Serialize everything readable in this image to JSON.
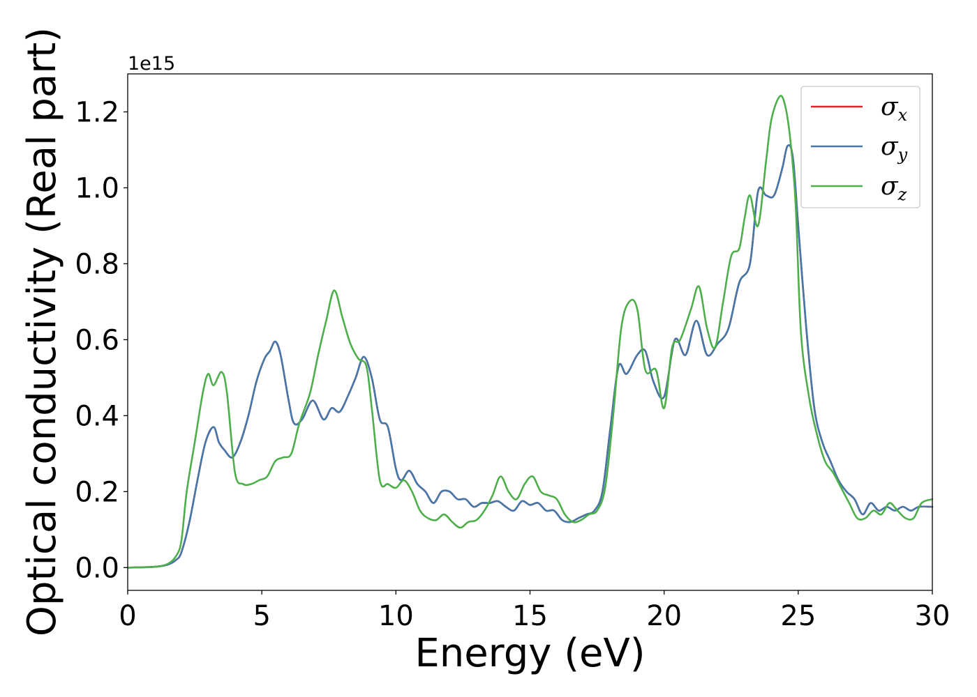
{
  "chart_data": {
    "type": "line",
    "title": "",
    "xlabel": "Energy (eV)",
    "ylabel": "Optical conductivity (Real part)",
    "y_offset_text": "1e15",
    "xlim": [
      0,
      30
    ],
    "ylim": [
      -0.06,
      1.3
    ],
    "x_ticks": [
      0,
      5,
      10,
      15,
      20,
      25,
      30
    ],
    "x_tick_labels": [
      "0",
      "5",
      "10",
      "15",
      "20",
      "25",
      "30"
    ],
    "y_ticks": [
      0.0,
      0.2,
      0.4,
      0.6,
      0.8,
      1.0,
      1.2
    ],
    "y_tick_labels": [
      "0.0",
      "0.2",
      "0.4",
      "0.6",
      "0.8",
      "1.0",
      "1.2"
    ],
    "grid": false,
    "legend_position": "top-right",
    "series": [
      {
        "name": "σx",
        "legend_symbol": "σ",
        "legend_subscript": "x",
        "color": "#d62728",
        "x": [
          0,
          1,
          1.5,
          1.8,
          2.0,
          2.3,
          2.6,
          2.9,
          3.2,
          3.4,
          3.6,
          3.9,
          4.2,
          4.5,
          4.8,
          5.1,
          5.3,
          5.5,
          5.7,
          6.0,
          6.2,
          6.5,
          6.9,
          7.3,
          7.6,
          7.9,
          8.2,
          8.5,
          8.8,
          9.1,
          9.4,
          9.7,
          10.0,
          10.2,
          10.5,
          10.8,
          11.1,
          11.4,
          11.7,
          12.0,
          12.3,
          12.6,
          12.9,
          13.2,
          13.5,
          13.8,
          14.1,
          14.4,
          14.7,
          15.0,
          15.3,
          15.6,
          15.9,
          16.2,
          16.5,
          16.8,
          17.1,
          17.4,
          17.7,
          18.0,
          18.3,
          18.6,
          19.0,
          19.3,
          19.6,
          20.0,
          20.4,
          20.8,
          21.2,
          21.6,
          22.0,
          22.4,
          22.8,
          23.2,
          23.5,
          23.8,
          24.1,
          24.4,
          24.6,
          24.8,
          25.0,
          25.3,
          25.6,
          25.9,
          26.2,
          26.5,
          26.8,
          27.1,
          27.4,
          27.7,
          28.0,
          28.3,
          28.6,
          28.9,
          29.2,
          29.5,
          30.0
        ],
        "y": [
          0.0,
          0.002,
          0.008,
          0.02,
          0.04,
          0.12,
          0.23,
          0.33,
          0.37,
          0.33,
          0.31,
          0.29,
          0.33,
          0.4,
          0.49,
          0.55,
          0.57,
          0.595,
          0.56,
          0.44,
          0.38,
          0.39,
          0.44,
          0.39,
          0.42,
          0.41,
          0.45,
          0.5,
          0.555,
          0.5,
          0.39,
          0.37,
          0.26,
          0.23,
          0.255,
          0.22,
          0.2,
          0.17,
          0.2,
          0.2,
          0.18,
          0.18,
          0.16,
          0.17,
          0.17,
          0.175,
          0.16,
          0.15,
          0.175,
          0.165,
          0.17,
          0.15,
          0.15,
          0.125,
          0.12,
          0.13,
          0.14,
          0.15,
          0.2,
          0.37,
          0.53,
          0.51,
          0.56,
          0.57,
          0.49,
          0.45,
          0.6,
          0.56,
          0.65,
          0.56,
          0.59,
          0.63,
          0.75,
          0.8,
          0.99,
          0.98,
          0.98,
          1.05,
          1.11,
          1.08,
          0.9,
          0.63,
          0.42,
          0.33,
          0.28,
          0.23,
          0.2,
          0.18,
          0.14,
          0.17,
          0.15,
          0.16,
          0.15,
          0.16,
          0.15,
          0.16,
          0.16
        ]
      },
      {
        "name": "σy",
        "legend_symbol": "σ",
        "legend_subscript": "y",
        "color": "#4477aa",
        "x": [
          0,
          1,
          1.5,
          1.8,
          2.0,
          2.3,
          2.6,
          2.9,
          3.2,
          3.4,
          3.6,
          3.9,
          4.2,
          4.5,
          4.8,
          5.1,
          5.3,
          5.5,
          5.7,
          6.0,
          6.2,
          6.5,
          6.9,
          7.3,
          7.6,
          7.9,
          8.2,
          8.5,
          8.8,
          9.1,
          9.4,
          9.7,
          10.0,
          10.2,
          10.5,
          10.8,
          11.1,
          11.4,
          11.7,
          12.0,
          12.3,
          12.6,
          12.9,
          13.2,
          13.5,
          13.8,
          14.1,
          14.4,
          14.7,
          15.0,
          15.3,
          15.6,
          15.9,
          16.2,
          16.5,
          16.8,
          17.1,
          17.4,
          17.7,
          18.0,
          18.3,
          18.6,
          19.0,
          19.3,
          19.6,
          20.0,
          20.4,
          20.8,
          21.2,
          21.6,
          22.0,
          22.4,
          22.8,
          23.2,
          23.5,
          23.8,
          24.1,
          24.4,
          24.6,
          24.8,
          25.0,
          25.3,
          25.6,
          25.9,
          26.2,
          26.5,
          26.8,
          27.1,
          27.4,
          27.7,
          28.0,
          28.3,
          28.6,
          28.9,
          29.2,
          29.5,
          30.0
        ],
        "y": [
          0.0,
          0.002,
          0.008,
          0.02,
          0.04,
          0.12,
          0.23,
          0.33,
          0.37,
          0.33,
          0.31,
          0.29,
          0.33,
          0.4,
          0.49,
          0.55,
          0.57,
          0.595,
          0.56,
          0.44,
          0.38,
          0.39,
          0.44,
          0.39,
          0.42,
          0.41,
          0.45,
          0.5,
          0.555,
          0.5,
          0.39,
          0.37,
          0.26,
          0.23,
          0.255,
          0.22,
          0.2,
          0.17,
          0.2,
          0.2,
          0.18,
          0.18,
          0.16,
          0.17,
          0.17,
          0.175,
          0.16,
          0.15,
          0.175,
          0.165,
          0.17,
          0.15,
          0.15,
          0.125,
          0.12,
          0.13,
          0.14,
          0.15,
          0.2,
          0.37,
          0.53,
          0.51,
          0.56,
          0.57,
          0.49,
          0.45,
          0.6,
          0.56,
          0.65,
          0.56,
          0.59,
          0.63,
          0.75,
          0.8,
          0.99,
          0.98,
          0.98,
          1.05,
          1.11,
          1.08,
          0.9,
          0.63,
          0.42,
          0.33,
          0.28,
          0.23,
          0.2,
          0.18,
          0.14,
          0.17,
          0.15,
          0.16,
          0.15,
          0.16,
          0.15,
          0.16,
          0.16
        ]
      },
      {
        "name": "σz",
        "legend_symbol": "σ",
        "legend_subscript": "z",
        "color": "#4daf4a",
        "x": [
          0,
          1,
          1.5,
          1.8,
          2.0,
          2.2,
          2.5,
          2.8,
          3.0,
          3.2,
          3.5,
          3.7,
          4.0,
          4.3,
          4.6,
          4.9,
          5.2,
          5.5,
          5.8,
          6.1,
          6.4,
          6.8,
          7.1,
          7.4,
          7.7,
          8.0,
          8.3,
          8.6,
          8.9,
          9.1,
          9.4,
          9.7,
          10.0,
          10.3,
          10.6,
          10.9,
          11.2,
          11.5,
          11.8,
          12.1,
          12.4,
          12.7,
          13.0,
          13.3,
          13.6,
          13.9,
          14.2,
          14.5,
          14.8,
          15.1,
          15.4,
          15.7,
          16.0,
          16.3,
          16.6,
          16.9,
          17.2,
          17.5,
          17.8,
          18.1,
          18.4,
          18.7,
          19.0,
          19.3,
          19.7,
          20.0,
          20.3,
          20.6,
          21.0,
          21.3,
          21.6,
          21.9,
          22.2,
          22.5,
          22.8,
          23.0,
          23.2,
          23.5,
          23.8,
          24.0,
          24.3,
          24.5,
          24.7,
          24.9,
          25.1,
          25.4,
          25.7,
          26.0,
          26.3,
          26.6,
          26.9,
          27.2,
          27.5,
          27.8,
          28.1,
          28.4,
          28.7,
          29.0,
          29.3,
          29.6,
          30.0
        ],
        "y": [
          0.0,
          0.002,
          0.01,
          0.03,
          0.07,
          0.2,
          0.33,
          0.46,
          0.51,
          0.48,
          0.515,
          0.46,
          0.25,
          0.22,
          0.22,
          0.23,
          0.24,
          0.28,
          0.29,
          0.3,
          0.38,
          0.46,
          0.56,
          0.65,
          0.73,
          0.66,
          0.59,
          0.55,
          0.53,
          0.42,
          0.23,
          0.22,
          0.21,
          0.23,
          0.2,
          0.15,
          0.13,
          0.125,
          0.14,
          0.12,
          0.105,
          0.12,
          0.125,
          0.15,
          0.19,
          0.24,
          0.2,
          0.18,
          0.22,
          0.24,
          0.2,
          0.19,
          0.18,
          0.14,
          0.12,
          0.125,
          0.14,
          0.15,
          0.21,
          0.4,
          0.63,
          0.7,
          0.68,
          0.52,
          0.52,
          0.42,
          0.58,
          0.6,
          0.68,
          0.74,
          0.63,
          0.58,
          0.7,
          0.82,
          0.84,
          0.92,
          0.98,
          0.9,
          1.07,
          1.18,
          1.24,
          1.22,
          1.13,
          0.96,
          0.62,
          0.45,
          0.35,
          0.28,
          0.25,
          0.21,
          0.17,
          0.13,
          0.13,
          0.15,
          0.14,
          0.17,
          0.15,
          0.13,
          0.13,
          0.17,
          0.18
        ]
      }
    ]
  }
}
